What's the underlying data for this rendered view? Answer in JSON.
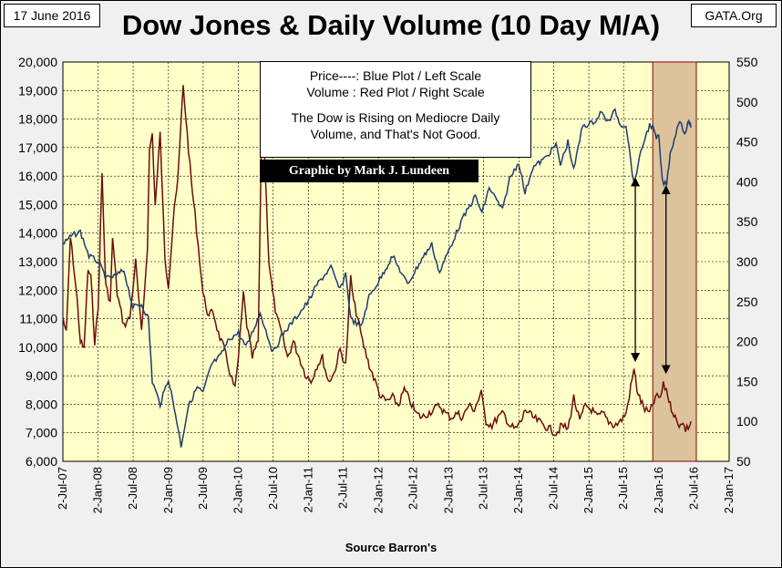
{
  "header": {
    "date_label": "17 June 2016",
    "source_label": "GATA.Org",
    "title": "Dow Jones & Daily Volume (10 Day M/A)"
  },
  "legend": {
    "line1": "Price----: Blue Plot / Left Scale",
    "line2": "Volume : Red Plot / Right Scale",
    "line3": "The Dow is Rising on Mediocre Daily",
    "line4": "Volume, and That's Not Good."
  },
  "credit": "Graphic by Mark J. Lundeen",
  "xaxis_label": "Source Barron's",
  "chart_data": {
    "type": "line",
    "title": "Dow Jones & Daily Volume (10 Day M/A)",
    "xlabel": "Source Barron's",
    "x_range": [
      "2007-07-02",
      "2017-01-02"
    ],
    "x_ticks": [
      "2-Jul-07",
      "2-Jan-08",
      "2-Jul-08",
      "2-Jan-09",
      "2-Jul-09",
      "2-Jan-10",
      "2-Jul-10",
      "2-Jan-11",
      "2-Jul-11",
      "2-Jan-12",
      "2-Jul-12",
      "2-Jan-13",
      "2-Jul-13",
      "2-Jan-14",
      "2-Jul-14",
      "2-Jan-15",
      "2-Jul-15",
      "2-Jan-16",
      "2-Jul-16",
      "2-Jan-17"
    ],
    "y_left": {
      "min": 6000,
      "max": 20000,
      "step": 1000,
      "ticks": [
        "6,000",
        "7,000",
        "8,000",
        "9,000",
        "10,000",
        "11,000",
        "12,000",
        "13,000",
        "14,000",
        "15,000",
        "16,000",
        "17,000",
        "18,000",
        "19,000",
        "20,000"
      ]
    },
    "y_right": {
      "min": 50,
      "max": 550,
      "step": 50,
      "ticks": [
        "50",
        "100",
        "150",
        "200",
        "250",
        "300",
        "350",
        "400",
        "450",
        "500",
        "550"
      ]
    },
    "highlight": {
      "from": "2015-12-01",
      "to": "2016-07-15"
    },
    "arrows": [
      {
        "x": "2015-09-01",
        "from_y_right": 400,
        "to_y_right": 180
      },
      {
        "x": "2016-02-08",
        "from_y_right": 390,
        "to_y_right": 165
      }
    ],
    "series": [
      {
        "axis": "left",
        "color": "#1f3b70",
        "points": [
          [
            "2007-07-02",
            13600
          ],
          [
            "2007-08-15",
            13900
          ],
          [
            "2007-10-01",
            14050
          ],
          [
            "2007-11-15",
            13200
          ],
          [
            "2008-01-02",
            13000
          ],
          [
            "2008-02-15",
            12400
          ],
          [
            "2008-04-01",
            12500
          ],
          [
            "2008-05-15",
            12700
          ],
          [
            "2008-07-01",
            11400
          ],
          [
            "2008-08-15",
            11500
          ],
          [
            "2008-09-20",
            11000
          ],
          [
            "2008-10-10",
            8800
          ],
          [
            "2008-11-20",
            8000
          ],
          [
            "2009-01-02",
            8900
          ],
          [
            "2009-02-15",
            7400
          ],
          [
            "2009-03-09",
            6550
          ],
          [
            "2009-04-15",
            7900
          ],
          [
            "2009-06-01",
            8600
          ],
          [
            "2009-07-01",
            8400
          ],
          [
            "2009-08-15",
            9400
          ],
          [
            "2009-10-01",
            9700
          ],
          [
            "2009-11-15",
            10300
          ],
          [
            "2010-01-02",
            10500
          ],
          [
            "2010-02-10",
            10000
          ],
          [
            "2010-04-26",
            11200
          ],
          [
            "2010-07-01",
            9800
          ],
          [
            "2010-08-15",
            10400
          ],
          [
            "2010-10-01",
            10800
          ],
          [
            "2010-11-15",
            11200
          ],
          [
            "2011-01-02",
            11600
          ],
          [
            "2011-02-15",
            12200
          ],
          [
            "2011-04-29",
            12800
          ],
          [
            "2011-06-15",
            12000
          ],
          [
            "2011-07-15",
            12600
          ],
          [
            "2011-08-10",
            11000
          ],
          [
            "2011-10-03",
            10700
          ],
          [
            "2011-11-15",
            11800
          ],
          [
            "2012-01-02",
            12300
          ],
          [
            "2012-03-15",
            13200
          ],
          [
            "2012-06-01",
            12200
          ],
          [
            "2012-08-15",
            13100
          ],
          [
            "2012-10-05",
            13600
          ],
          [
            "2012-11-15",
            12600
          ],
          [
            "2013-01-02",
            13400
          ],
          [
            "2013-03-15",
            14500
          ],
          [
            "2013-05-20",
            15300
          ],
          [
            "2013-06-24",
            14700
          ],
          [
            "2013-08-01",
            15600
          ],
          [
            "2013-10-09",
            14800
          ],
          [
            "2013-11-15",
            15900
          ],
          [
            "2014-01-02",
            16500
          ],
          [
            "2014-02-03",
            15400
          ],
          [
            "2014-03-15",
            16300
          ],
          [
            "2014-05-15",
            16600
          ],
          [
            "2014-07-15",
            17100
          ],
          [
            "2014-08-07",
            16400
          ],
          [
            "2014-09-15",
            17200
          ],
          [
            "2014-10-15",
            16200
          ],
          [
            "2014-12-01",
            17800
          ],
          [
            "2015-01-02",
            17800
          ],
          [
            "2015-02-15",
            18000
          ],
          [
            "2015-03-02",
            18250
          ],
          [
            "2015-04-15",
            17900
          ],
          [
            "2015-05-19",
            18300
          ],
          [
            "2015-06-15",
            17800
          ],
          [
            "2015-07-15",
            17800
          ],
          [
            "2015-08-25",
            15700
          ],
          [
            "2015-09-15",
            16400
          ],
          [
            "2015-10-15",
            17200
          ],
          [
            "2015-11-15",
            17800
          ],
          [
            "2015-12-01",
            17700
          ],
          [
            "2015-12-20",
            17300
          ],
          [
            "2016-01-02",
            17400
          ],
          [
            "2016-01-20",
            15800
          ],
          [
            "2016-02-11",
            15700
          ],
          [
            "2016-03-01",
            16800
          ],
          [
            "2016-04-20",
            18000
          ],
          [
            "2016-05-15",
            17500
          ],
          [
            "2016-06-01",
            17800
          ],
          [
            "2016-06-10",
            17900
          ],
          [
            "2016-06-17",
            17700
          ]
        ]
      },
      {
        "axis": "right",
        "color": "#6b0d0d",
        "points": [
          [
            "2007-07-02",
            230
          ],
          [
            "2007-07-20",
            210
          ],
          [
            "2007-08-10",
            330
          ],
          [
            "2007-08-25",
            300
          ],
          [
            "2007-09-15",
            250
          ],
          [
            "2007-10-01",
            200
          ],
          [
            "2007-10-20",
            190
          ],
          [
            "2007-11-10",
            290
          ],
          [
            "2007-11-25",
            280
          ],
          [
            "2007-12-15",
            200
          ],
          [
            "2008-01-02",
            240
          ],
          [
            "2008-01-22",
            410
          ],
          [
            "2008-02-10",
            270
          ],
          [
            "2008-03-05",
            250
          ],
          [
            "2008-03-17",
            330
          ],
          [
            "2008-04-10",
            260
          ],
          [
            "2008-05-15",
            220
          ],
          [
            "2008-06-15",
            230
          ],
          [
            "2008-07-15",
            300
          ],
          [
            "2008-08-15",
            210
          ],
          [
            "2008-09-15",
            320
          ],
          [
            "2008-09-25",
            440
          ],
          [
            "2008-10-10",
            460
          ],
          [
            "2008-10-25",
            370
          ],
          [
            "2008-11-20",
            460
          ],
          [
            "2008-12-15",
            300
          ],
          [
            "2009-01-02",
            270
          ],
          [
            "2009-02-01",
            370
          ],
          [
            "2009-02-20",
            400
          ],
          [
            "2009-03-10",
            480
          ],
          [
            "2009-03-20",
            520
          ],
          [
            "2009-04-10",
            460
          ],
          [
            "2009-05-01",
            400
          ],
          [
            "2009-05-20",
            360
          ],
          [
            "2009-06-15",
            300
          ],
          [
            "2009-07-01",
            260
          ],
          [
            "2009-08-01",
            230
          ],
          [
            "2009-08-20",
            240
          ],
          [
            "2009-09-20",
            210
          ],
          [
            "2009-10-20",
            190
          ],
          [
            "2009-11-20",
            160
          ],
          [
            "2009-12-15",
            140
          ],
          [
            "2010-01-02",
            180
          ],
          [
            "2010-01-28",
            260
          ],
          [
            "2010-02-15",
            220
          ],
          [
            "2010-03-15",
            180
          ],
          [
            "2010-04-15",
            200
          ],
          [
            "2010-05-06",
            520
          ],
          [
            "2010-05-20",
            420
          ],
          [
            "2010-06-10",
            300
          ],
          [
            "2010-06-30",
            260
          ],
          [
            "2010-07-20",
            230
          ],
          [
            "2010-08-15",
            210
          ],
          [
            "2010-09-15",
            180
          ],
          [
            "2010-10-15",
            200
          ],
          [
            "2010-11-15",
            180
          ],
          [
            "2010-12-15",
            160
          ],
          [
            "2011-01-15",
            150
          ],
          [
            "2011-02-15",
            170
          ],
          [
            "2011-03-15",
            180
          ],
          [
            "2011-04-15",
            150
          ],
          [
            "2011-05-15",
            160
          ],
          [
            "2011-06-15",
            190
          ],
          [
            "2011-07-15",
            170
          ],
          [
            "2011-08-10",
            280
          ],
          [
            "2011-08-25",
            250
          ],
          [
            "2011-09-15",
            230
          ],
          [
            "2011-10-10",
            200
          ],
          [
            "2011-11-15",
            170
          ],
          [
            "2011-12-15",
            150
          ],
          [
            "2012-01-15",
            130
          ],
          [
            "2012-02-15",
            125
          ],
          [
            "2012-03-15",
            130
          ],
          [
            "2012-04-15",
            120
          ],
          [
            "2012-05-15",
            140
          ],
          [
            "2012-06-15",
            125
          ],
          [
            "2012-07-15",
            110
          ],
          [
            "2012-08-15",
            105
          ],
          [
            "2012-09-15",
            110
          ],
          [
            "2012-10-15",
            115
          ],
          [
            "2012-11-15",
            120
          ],
          [
            "2012-12-15",
            110
          ],
          [
            "2013-01-15",
            105
          ],
          [
            "2013-02-15",
            110
          ],
          [
            "2013-03-15",
            105
          ],
          [
            "2013-04-15",
            120
          ],
          [
            "2013-05-15",
            115
          ],
          [
            "2013-06-20",
            135
          ],
          [
            "2013-07-15",
            100
          ],
          [
            "2013-08-15",
            95
          ],
          [
            "2013-09-15",
            105
          ],
          [
            "2013-10-15",
            110
          ],
          [
            "2013-11-15",
            95
          ],
          [
            "2013-12-15",
            90
          ],
          [
            "2014-01-15",
            100
          ],
          [
            "2014-02-05",
            115
          ],
          [
            "2014-03-15",
            105
          ],
          [
            "2014-04-15",
            100
          ],
          [
            "2014-05-15",
            95
          ],
          [
            "2014-06-15",
            90
          ],
          [
            "2014-07-15",
            85
          ],
          [
            "2014-08-15",
            95
          ],
          [
            "2014-09-15",
            90
          ],
          [
            "2014-10-15",
            130
          ],
          [
            "2014-11-15",
            100
          ],
          [
            "2014-12-15",
            120
          ],
          [
            "2015-01-15",
            115
          ],
          [
            "2015-02-15",
            105
          ],
          [
            "2015-03-15",
            110
          ],
          [
            "2015-04-15",
            100
          ],
          [
            "2015-05-15",
            95
          ],
          [
            "2015-06-15",
            100
          ],
          [
            "2015-07-15",
            110
          ],
          [
            "2015-08-25",
            165
          ],
          [
            "2015-09-10",
            140
          ],
          [
            "2015-09-30",
            125
          ],
          [
            "2015-10-20",
            115
          ],
          [
            "2015-11-15",
            110
          ],
          [
            "2015-12-15",
            130
          ],
          [
            "2016-01-10",
            130
          ],
          [
            "2016-01-25",
            145
          ],
          [
            "2016-02-10",
            140
          ],
          [
            "2016-03-01",
            120
          ],
          [
            "2016-03-20",
            110
          ],
          [
            "2016-04-10",
            95
          ],
          [
            "2016-04-30",
            100
          ],
          [
            "2016-05-20",
            90
          ],
          [
            "2016-06-10",
            95
          ],
          [
            "2016-06-17",
            100
          ]
        ]
      }
    ]
  }
}
